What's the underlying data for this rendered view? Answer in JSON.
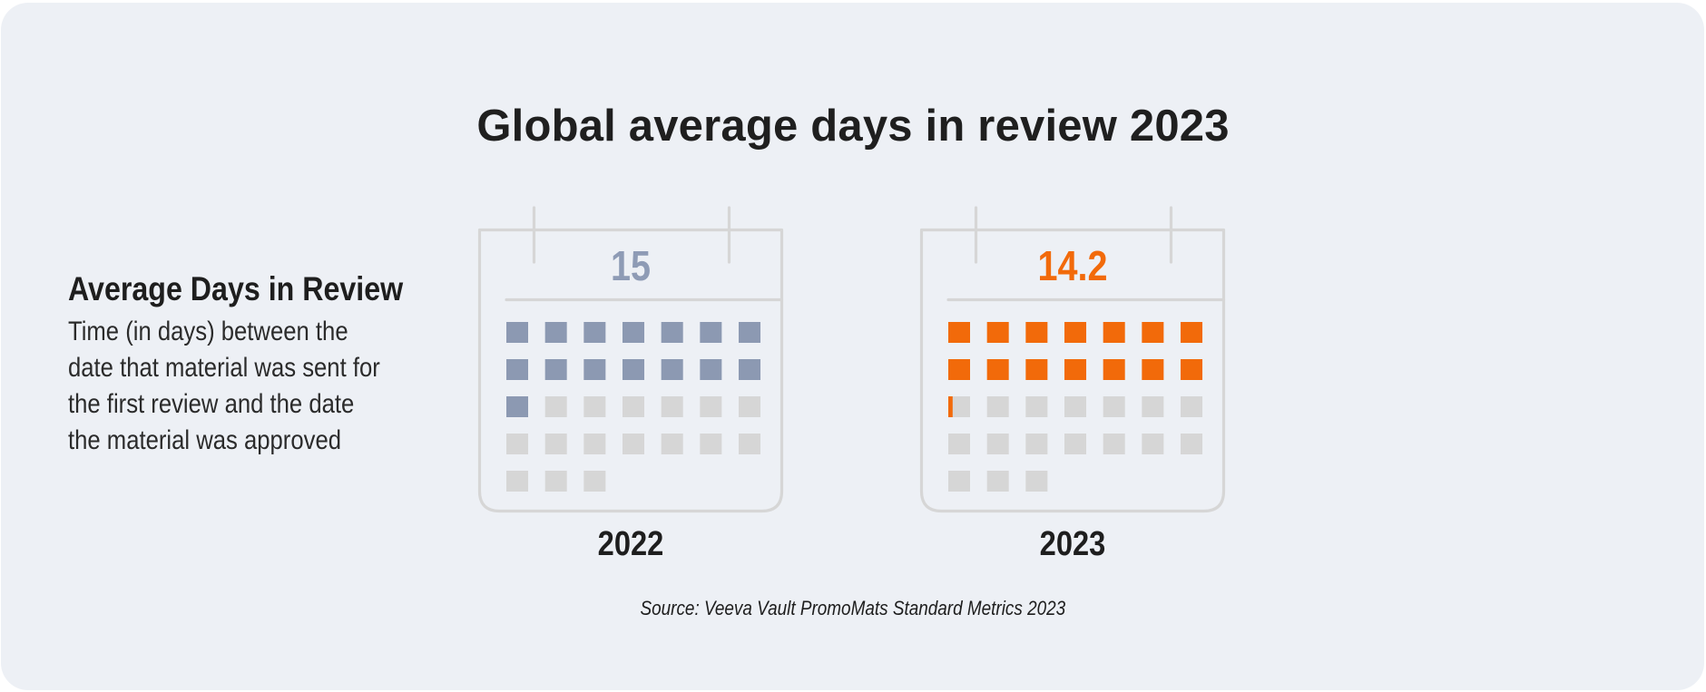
{
  "title": "Global average days in review 2023",
  "metric": {
    "heading": "Average Days in Review",
    "description_lines": [
      "Time (in days) between the",
      "date that material was sent for",
      "the first review and the date",
      "the material was approved"
    ]
  },
  "calendars": [
    {
      "year": "2022",
      "value_label": "15",
      "value": 15,
      "total_days": 31,
      "fill_color": "#8c99b2",
      "value_color": "#8e9bb5"
    },
    {
      "year": "2023",
      "value_label": "14.2",
      "value": 14.2,
      "total_days": 31,
      "fill_color": "#f26a0a",
      "value_color": "#f26a0a"
    }
  ],
  "colors": {
    "empty_day": "#d6d6d6",
    "calendar_outline": "#d6d6d6",
    "card_background": "#edf0f5"
  },
  "source": "Source: Veeva Vault PromoMats Standard Metrics 2023"
}
